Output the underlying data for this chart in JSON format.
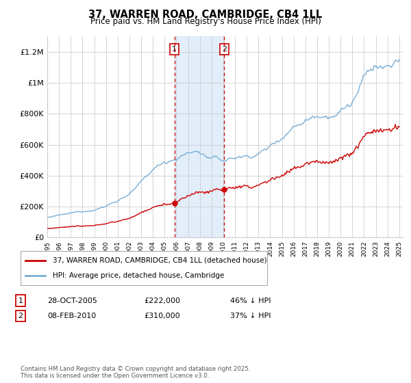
{
  "title": "37, WARREN ROAD, CAMBRIDGE, CB4 1LL",
  "subtitle": "Price paid vs. HM Land Registry's House Price Index (HPI)",
  "hpi_label": "HPI: Average price, detached house, Cambridge",
  "price_label": "37, WARREN ROAD, CAMBRIDGE, CB4 1LL (detached house)",
  "legend_note": "Contains HM Land Registry data © Crown copyright and database right 2025.\nThis data is licensed under the Open Government Licence v3.0.",
  "annotation1_date": "28-OCT-2005",
  "annotation1_price": "£222,000",
  "annotation1_hpi": "46% ↓ HPI",
  "annotation2_date": "08-FEB-2010",
  "annotation2_price": "£310,000",
  "annotation2_hpi": "37% ↓ HPI",
  "shade_color": "#d0e4f7",
  "vline1_color": "#cc0000",
  "vline2_color": "#cc0000",
  "hpi_color": "#7aaed6",
  "price_color": "#cc0000",
  "box1_color": "#cc0000",
  "box2_color": "#cc0000",
  "ylim": [
    0,
    1300000
  ],
  "yticks": [
    0,
    200000,
    400000,
    600000,
    800000,
    1000000,
    1200000
  ],
  "ytick_labels": [
    "£0",
    "£200K",
    "£400K",
    "£600K",
    "£800K",
    "£1M",
    "£1.2M"
  ],
  "annot1_year": 2005.833,
  "annot2_year": 2010.083,
  "price1": 222000,
  "price2": 310000
}
